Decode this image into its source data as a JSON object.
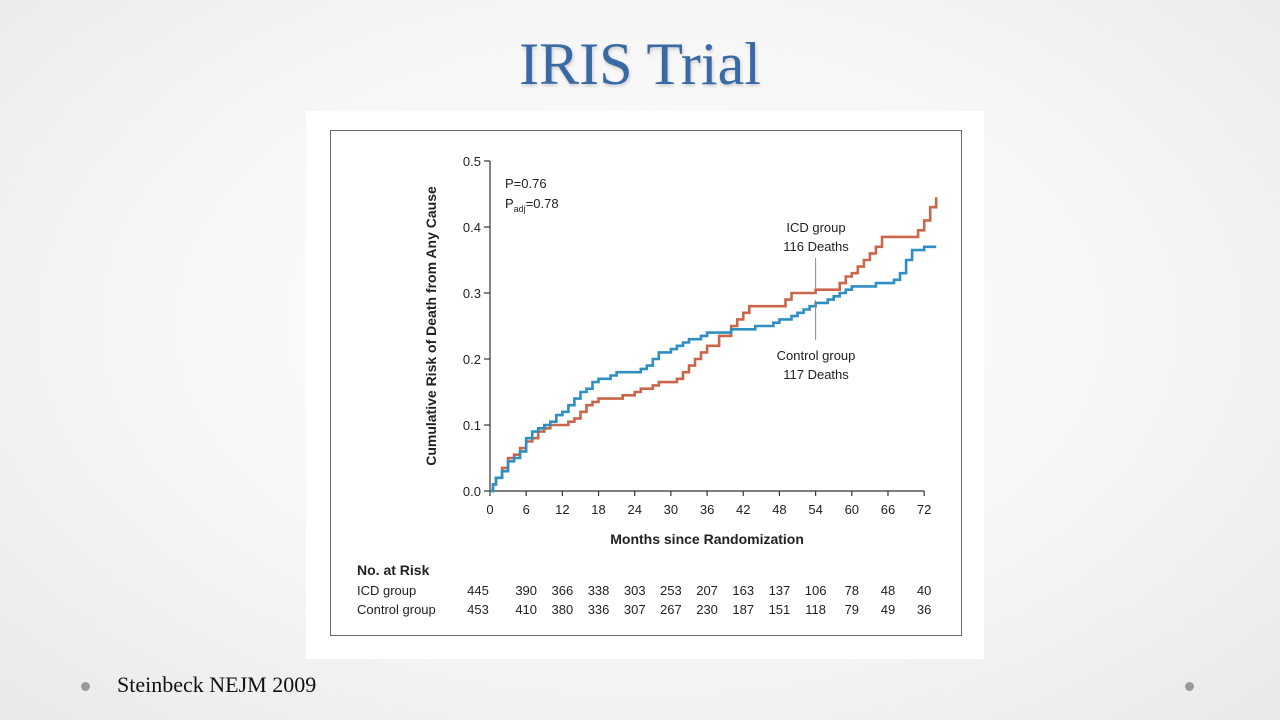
{
  "slide": {
    "title": "IRIS Trial",
    "footer": "Steinbeck NEJM 2009"
  },
  "colors": {
    "icd": "#c9674a",
    "control": "#2f8fc3",
    "title": "#3a6aa6"
  },
  "chart_data": {
    "type": "line",
    "title": "",
    "xlabel": "Months since Randomization",
    "ylabel": "Cumulative Risk of Death from Any Cause",
    "xlim": [
      0,
      74
    ],
    "ylim": [
      0,
      0.5
    ],
    "x_ticks": [
      0,
      6,
      12,
      18,
      24,
      30,
      36,
      42,
      48,
      54,
      60,
      66,
      72
    ],
    "y_ticks": [
      0.0,
      0.1,
      0.2,
      0.3,
      0.4,
      0.5
    ],
    "y_tick_labels": [
      "0.0",
      "0.1",
      "0.2",
      "0.3",
      "0.4",
      "0.5"
    ],
    "stats": {
      "p_prefix": "P=",
      "p_value": "0.76",
      "padj_prefix": "P",
      "padj_sub": "adj",
      "padj_value": "=0.78"
    },
    "series": [
      {
        "key": "icd",
        "name": "ICD group",
        "color": "#c9674a",
        "annotation": [
          "ICD group",
          "116 Deaths"
        ],
        "points": [
          [
            0,
            0
          ],
          [
            0.5,
            0.01
          ],
          [
            1,
            0.02
          ],
          [
            2,
            0.035
          ],
          [
            3,
            0.05
          ],
          [
            4,
            0.055
          ],
          [
            5,
            0.065
          ],
          [
            6,
            0.075
          ],
          [
            7,
            0.08
          ],
          [
            8,
            0.09
          ],
          [
            9,
            0.095
          ],
          [
            10,
            0.1
          ],
          [
            12,
            0.1
          ],
          [
            13,
            0.105
          ],
          [
            14,
            0.11
          ],
          [
            15,
            0.12
          ],
          [
            16,
            0.13
          ],
          [
            17,
            0.135
          ],
          [
            18,
            0.14
          ],
          [
            21,
            0.14
          ],
          [
            22,
            0.145
          ],
          [
            24,
            0.15
          ],
          [
            25,
            0.155
          ],
          [
            27,
            0.16
          ],
          [
            28,
            0.165
          ],
          [
            30,
            0.165
          ],
          [
            31,
            0.17
          ],
          [
            32,
            0.18
          ],
          [
            33,
            0.19
          ],
          [
            34,
            0.2
          ],
          [
            35,
            0.21
          ],
          [
            36,
            0.22
          ],
          [
            38,
            0.235
          ],
          [
            40,
            0.25
          ],
          [
            41,
            0.26
          ],
          [
            42,
            0.27
          ],
          [
            43,
            0.28
          ],
          [
            48,
            0.28
          ],
          [
            49,
            0.29
          ],
          [
            50,
            0.3
          ],
          [
            53,
            0.3
          ],
          [
            54,
            0.305
          ],
          [
            57,
            0.305
          ],
          [
            58,
            0.315
          ],
          [
            59,
            0.325
          ],
          [
            60,
            0.33
          ],
          [
            61,
            0.34
          ],
          [
            62,
            0.35
          ],
          [
            63,
            0.36
          ],
          [
            64,
            0.37
          ],
          [
            65,
            0.385
          ],
          [
            70,
            0.385
          ],
          [
            71,
            0.395
          ],
          [
            72,
            0.41
          ],
          [
            73,
            0.43
          ],
          [
            74,
            0.445
          ]
        ]
      },
      {
        "key": "control",
        "name": "Control group",
        "color": "#2f8fc3",
        "annotation": [
          "Control group",
          "117 Deaths"
        ],
        "points": [
          [
            0,
            0
          ],
          [
            0.5,
            0.01
          ],
          [
            1,
            0.02
          ],
          [
            2,
            0.03
          ],
          [
            3,
            0.045
          ],
          [
            4,
            0.05
          ],
          [
            5,
            0.06
          ],
          [
            6,
            0.08
          ],
          [
            7,
            0.09
          ],
          [
            8,
            0.095
          ],
          [
            9,
            0.1
          ],
          [
            10,
            0.105
          ],
          [
            11,
            0.115
          ],
          [
            12,
            0.12
          ],
          [
            13,
            0.13
          ],
          [
            14,
            0.14
          ],
          [
            15,
            0.15
          ],
          [
            16,
            0.155
          ],
          [
            17,
            0.165
          ],
          [
            18,
            0.17
          ],
          [
            20,
            0.175
          ],
          [
            21,
            0.18
          ],
          [
            24,
            0.18
          ],
          [
            25,
            0.185
          ],
          [
            26,
            0.19
          ],
          [
            27,
            0.2
          ],
          [
            28,
            0.21
          ],
          [
            30,
            0.215
          ],
          [
            31,
            0.22
          ],
          [
            32,
            0.225
          ],
          [
            33,
            0.23
          ],
          [
            35,
            0.235
          ],
          [
            36,
            0.24
          ],
          [
            39,
            0.24
          ],
          [
            40,
            0.245
          ],
          [
            43,
            0.245
          ],
          [
            44,
            0.25
          ],
          [
            47,
            0.255
          ],
          [
            48,
            0.26
          ],
          [
            50,
            0.265
          ],
          [
            51,
            0.27
          ],
          [
            52,
            0.275
          ],
          [
            53,
            0.28
          ],
          [
            54,
            0.285
          ],
          [
            56,
            0.29
          ],
          [
            57,
            0.295
          ],
          [
            58,
            0.3
          ],
          [
            59,
            0.305
          ],
          [
            60,
            0.31
          ],
          [
            63,
            0.31
          ],
          [
            64,
            0.315
          ],
          [
            67,
            0.32
          ],
          [
            68,
            0.33
          ],
          [
            69,
            0.35
          ],
          [
            70,
            0.365
          ],
          [
            72,
            0.37
          ],
          [
            74,
            0.37
          ]
        ]
      }
    ],
    "risk_table": {
      "title": "No. at Risk",
      "rows": [
        {
          "label": "ICD group",
          "values": [
            "445",
            "390",
            "366",
            "338",
            "303",
            "253",
            "207",
            "163",
            "137",
            "106",
            "78",
            "48",
            "40"
          ]
        },
        {
          "label": "Control group",
          "values": [
            "453",
            "410",
            "380",
            "336",
            "307",
            "267",
            "230",
            "187",
            "151",
            "118",
            "79",
            "49",
            "36"
          ]
        }
      ]
    }
  }
}
